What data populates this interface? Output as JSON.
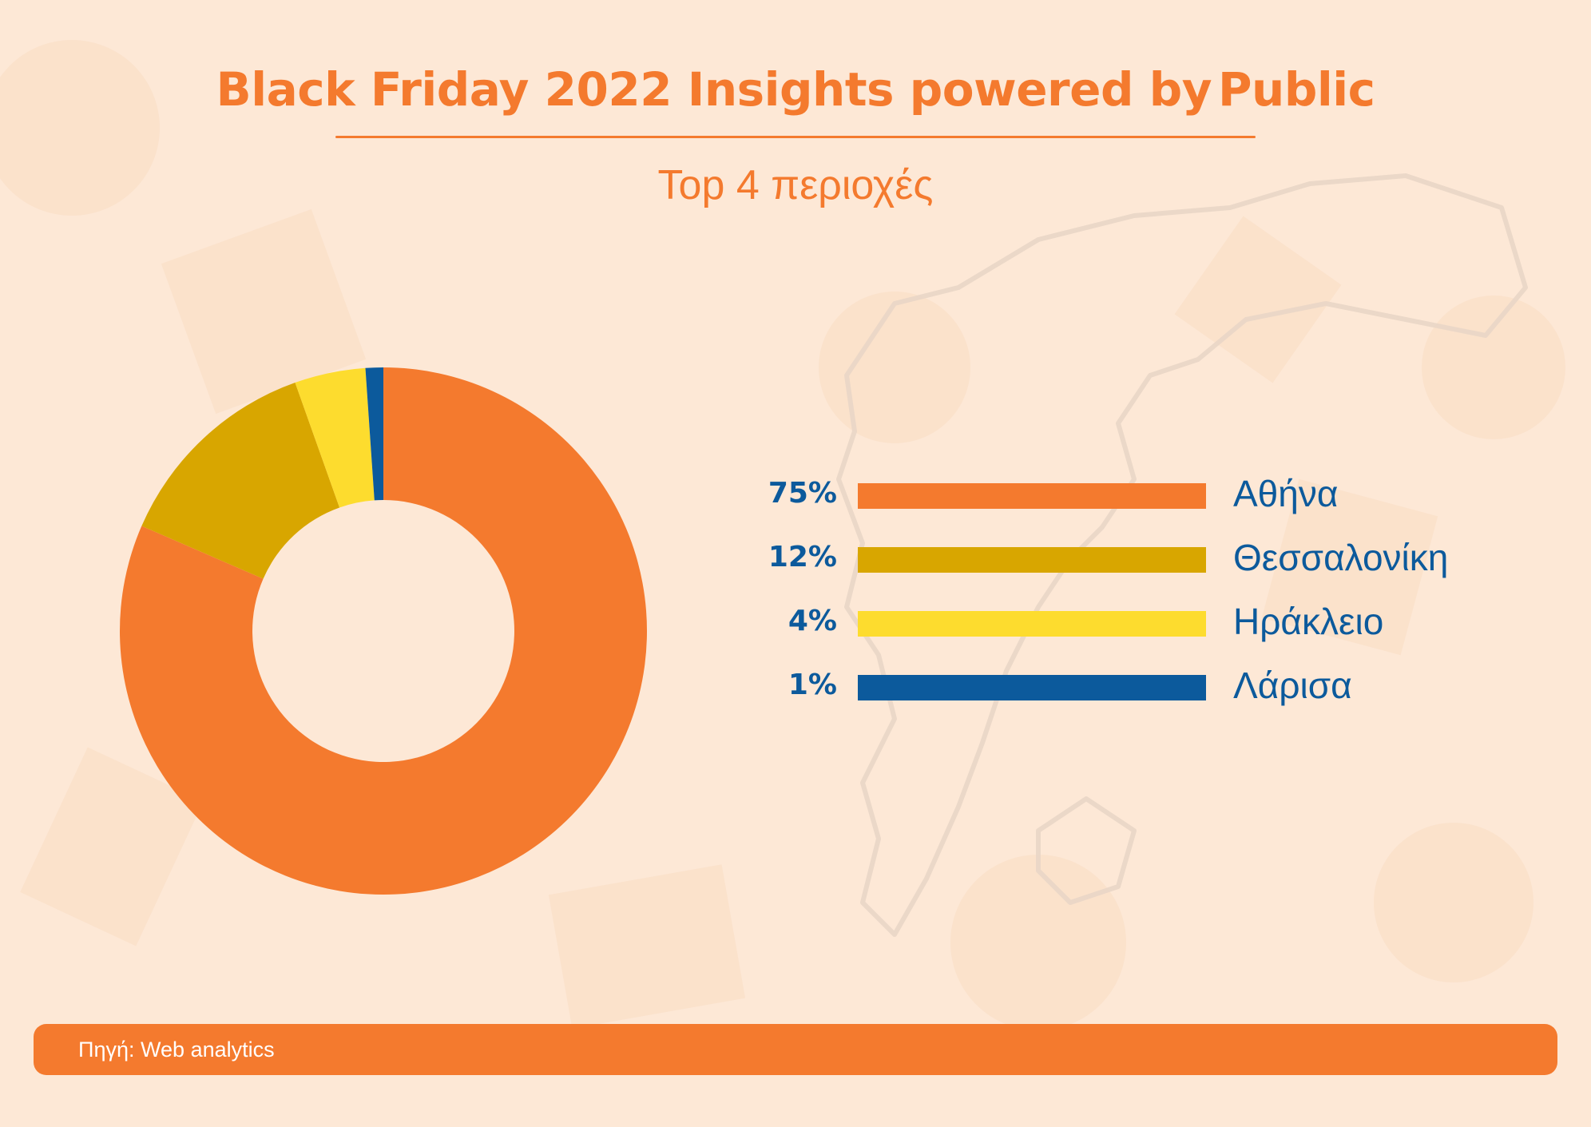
{
  "header": {
    "title": "Black Friday 2022 Insights powered by",
    "brand": "Public",
    "subtitle": "Top 4 περιοχές"
  },
  "chart_data": {
    "type": "pie",
    "categories": [
      "Αθήνα",
      "Θεσσαλονίκη",
      "Ηράκλειο",
      "Λάρισα"
    ],
    "values": [
      75,
      12,
      4,
      1
    ],
    "labels": [
      "75%",
      "12%",
      "4%",
      "1%"
    ],
    "colors": [
      "#f47a2e",
      "#d8a600",
      "#fddc2e",
      "#0c5a9c"
    ]
  },
  "footer": {
    "source": "Πηγή: Web analytics"
  },
  "colors": {
    "accent": "#f47a2e",
    "text_blue": "#0c5a9c",
    "background": "#fde8d6"
  }
}
